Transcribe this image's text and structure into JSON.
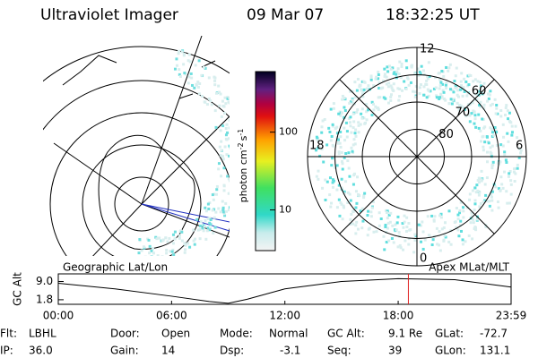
{
  "header": {
    "title": "Ultraviolet Imager",
    "date": "09 Mar 07",
    "time": "18:32:25 UT"
  },
  "colorbar": {
    "label": [
      "photon cm",
      "-2",
      "s",
      "-1"
    ],
    "log": true,
    "clim": [
      3,
      600
    ],
    "ticks": [
      10,
      100
    ]
  },
  "polar": {
    "mlt_labels": {
      "top": "12",
      "left": "18",
      "right": "6",
      "bottom": "0"
    },
    "rlim": [
      90,
      50
    ],
    "lat_rings": [
      80,
      70,
      60
    ]
  },
  "panel_labels": {
    "left": "Geographic Lat/Lon",
    "right": "Apex MLat/MLT"
  },
  "altitude_chart": {
    "type": "line",
    "ylabel": "GC Alt",
    "x": [
      0,
      3,
      6,
      8,
      9,
      10,
      12,
      15,
      18,
      21,
      23.98
    ],
    "values": [
      8.3,
      6.1,
      3.2,
      1.1,
      0.4,
      2.0,
      6.1,
      9.0,
      10.1,
      9.7,
      6.8
    ],
    "color": "#000000",
    "xlim": [
      0,
      23.98
    ],
    "ylim": [
      0,
      12
    ],
    "yticks": [
      {
        "value": 9,
        "label": "9.0"
      },
      1.8
    ],
    "xticks": [
      {
        "value": 0,
        "label": "00:00"
      },
      {
        "value": 6,
        "label": "06:00"
      },
      {
        "value": 12,
        "label": "12:00"
      },
      {
        "value": 18,
        "label": "18:00"
      },
      {
        "value": 23.98,
        "label": "23:59"
      }
    ],
    "time_marker": 18.54,
    "marker_color": "#e02020"
  },
  "footer": [
    [
      {
        "label": "Flt:",
        "value": "LBHL"
      },
      {
        "label": "Door:",
        "value": "Open"
      },
      {
        "label": "Mode:",
        "value": "Normal"
      },
      {
        "label": "GC Alt:",
        "value": "9.1 Re"
      },
      {
        "label": "GLat:",
        "value": "-72.7"
      }
    ],
    [
      {
        "label": "IP:",
        "value": "36.0"
      },
      {
        "label": "Gain:",
        "value": "14"
      },
      {
        "label": "Dsp:",
        "value": "-3.1"
      },
      {
        "label": "Seq:",
        "value": "39"
      },
      {
        "label": "GLon:",
        "value": "131.1"
      }
    ]
  ]
}
